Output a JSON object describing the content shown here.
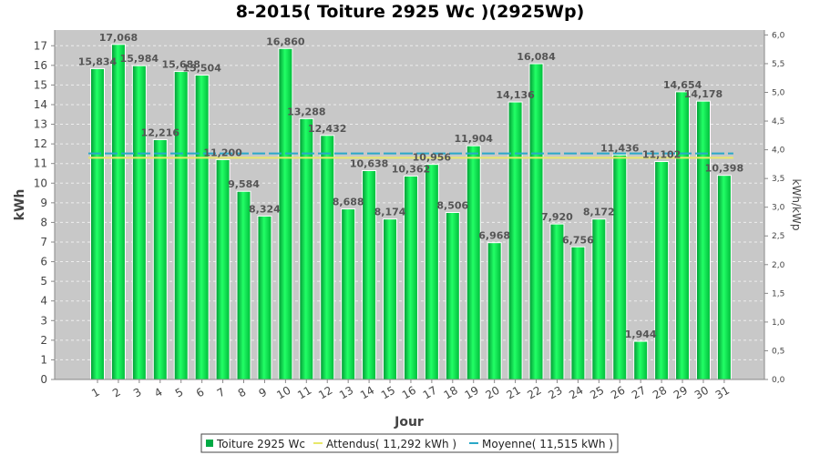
{
  "chart_data": {
    "type": "bar",
    "title": "8-2015( Toiture 2925 Wc )(2925Wp)",
    "xlabel": "Jour",
    "ylabel": "kWh",
    "y2label": "kWh/kWp",
    "ylim": [
      0,
      17.8
    ],
    "y_ticks": [
      0,
      1,
      2,
      3,
      4,
      5,
      6,
      7,
      8,
      9,
      10,
      11,
      12,
      13,
      14,
      15,
      16,
      17
    ],
    "y2_ticks": [
      "0,0",
      "0,5",
      "1,0",
      "1,5",
      "2,0",
      "2,5",
      "3,0",
      "3,5",
      "4,0",
      "4,5",
      "5,0",
      "5,5",
      "6,0"
    ],
    "y2_ratio": 2.925,
    "categories": [
      "1",
      "2",
      "3",
      "4",
      "5",
      "6",
      "7",
      "8",
      "9",
      "10",
      "11",
      "12",
      "13",
      "14",
      "15",
      "16",
      "17",
      "18",
      "19",
      "20",
      "21",
      "22",
      "23",
      "24",
      "25",
      "26",
      "27",
      "28",
      "29",
      "30",
      "31"
    ],
    "series": [
      {
        "name": "Toiture 2925 Wc",
        "color": "#00cc44",
        "values": [
          15.834,
          17.068,
          15.984,
          12.216,
          15.688,
          15.504,
          11.2,
          9.584,
          8.324,
          16.86,
          13.288,
          12.432,
          8.688,
          10.638,
          8.174,
          10.362,
          10.956,
          8.506,
          11.904,
          6.968,
          14.136,
          16.084,
          7.92,
          6.756,
          8.172,
          11.436,
          1.944,
          11.102,
          14.654,
          14.178,
          10.398
        ],
        "labels": [
          "15,834",
          "17,068",
          "15,984",
          "12,216",
          "15,688",
          "15,504",
          "11,200",
          "9,584",
          "8,324",
          "16,860",
          "13,288",
          "12,432",
          "8,688",
          "10,638",
          "8,174",
          "10,362",
          "10,956",
          "8,506",
          "11,904",
          "6,968",
          "14,136",
          "16,084",
          "7,920",
          "6,756",
          "8,172",
          "11,436",
          "1,944",
          "11,102",
          "14,654",
          "14,178",
          "10,398"
        ]
      }
    ],
    "reference_lines": [
      {
        "name": "Attendus( 11,292 kWh )",
        "value": 11.292,
        "color": "#e8e86a"
      },
      {
        "name": "Moyenne( 11,515 kWh )",
        "value": 11.515,
        "color": "#2aa8c8"
      }
    ],
    "grid": true,
    "legend_position": "bottom",
    "plot_background": "#c8c8c8"
  }
}
